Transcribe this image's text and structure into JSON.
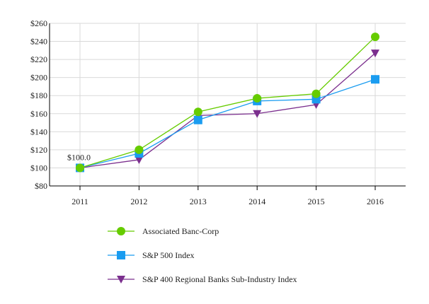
{
  "chart_data": {
    "type": "line",
    "title": "",
    "xlabel": "",
    "ylabel": "",
    "categories": [
      "2011",
      "2012",
      "2013",
      "2014",
      "2015",
      "2016"
    ],
    "ylim": [
      80,
      260
    ],
    "yticks": [
      80,
      100,
      120,
      140,
      160,
      180,
      200,
      220,
      240,
      260
    ],
    "ytick_labels": [
      "$80",
      "$100",
      "$120",
      "$140",
      "$160",
      "$180",
      "$200",
      "$220",
      "$240",
      "$260"
    ],
    "grid": true,
    "legend_placement": "bottom",
    "annotation": "$100.0",
    "series": [
      {
        "name": "Associated Banc-Corp",
        "marker": "circle",
        "color": "#66cc00",
        "values": [
          100,
          120,
          162,
          177,
          182,
          245
        ]
      },
      {
        "name": "S&P 500 Index",
        "marker": "square",
        "color": "#1a9cf0",
        "values": [
          100,
          116,
          153,
          174,
          176,
          198
        ]
      },
      {
        "name": "S&P 400 Regional Banks Sub-Industry Index",
        "marker": "triangle-down",
        "color": "#7b2f8e",
        "values": [
          100,
          109,
          158,
          160,
          170,
          227
        ]
      }
    ]
  }
}
